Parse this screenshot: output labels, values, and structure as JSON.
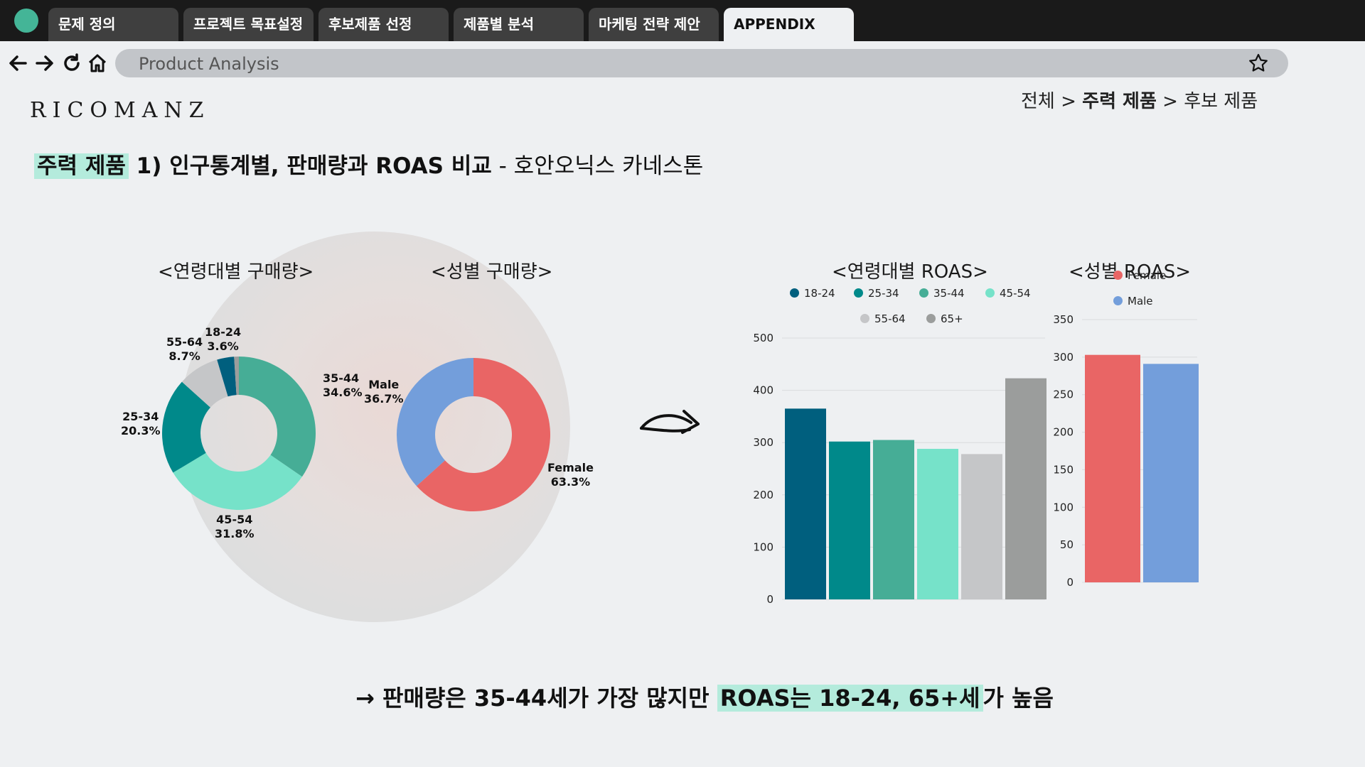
{
  "tabs": [
    {
      "label": "문제 정의"
    },
    {
      "label": "프로젝트 목표설정"
    },
    {
      "label": "후보제품 선정"
    },
    {
      "label": "제품별 분석"
    },
    {
      "label": "마케팅 전략 제안"
    },
    {
      "label": "APPENDIX"
    }
  ],
  "address_bar": {
    "text": "Product Analysis"
  },
  "logo": "RICOMANZ",
  "breadcrumb": {
    "part1": "전체 > ",
    "part2": "주력 제품",
    "part3": " > 후보 제품"
  },
  "title": {
    "highlight": "주력 제품",
    "main": " 1) 인구통계별, 판매량과 ROAS 비교",
    "sub": " - 호안오닉스 카네스톤"
  },
  "chart_titles": {
    "age_purchase": "<연령대별 구매량>",
    "gender_purchase": "<성별 구매량>",
    "age_roas": "<연령대별 ROAS>",
    "gender_roas": "<성별 ROAS>"
  },
  "colors": {
    "18-24": "#005f7e",
    "25-34": "#00898a",
    "35-44": "#46ad96",
    "45-54": "#76e2c9",
    "55-64": "#c5c6c8",
    "65+": "#9b9d9c",
    "Female": "#e96565",
    "Male": "#739edb"
  },
  "chart_data": [
    {
      "type": "pie",
      "title": "<연령대별 구매량>",
      "slices": [
        {
          "label": "35-44",
          "value": 34.6,
          "text": "35-44\n34.6%"
        },
        {
          "label": "45-54",
          "value": 31.8,
          "text": "45-54\n31.8%"
        },
        {
          "label": "25-34",
          "value": 20.3,
          "text": "25-34\n20.3%"
        },
        {
          "label": "55-64",
          "value": 8.7,
          "text": "55-64\n8.7%"
        },
        {
          "label": "18-24",
          "value": 3.6,
          "text": "18-24\n3.6%"
        },
        {
          "label": "65+",
          "value": 1.0,
          "text": ""
        }
      ]
    },
    {
      "type": "pie",
      "title": "<성별 구매량>",
      "slices": [
        {
          "label": "Female",
          "value": 63.3,
          "text": "Female\n63.3%"
        },
        {
          "label": "Male",
          "value": 36.7,
          "text": "Male\n36.7%"
        }
      ]
    },
    {
      "type": "bar",
      "title": "<연령대별 ROAS>",
      "categories": [
        "18-24",
        "25-34",
        "35-44",
        "45-54",
        "55-64",
        "65+"
      ],
      "values": [
        365,
        302,
        305,
        288,
        278,
        423
      ],
      "ylim": [
        0,
        500
      ],
      "yticks": [
        0,
        100,
        200,
        300,
        400,
        500
      ],
      "legend": "top",
      "grid": true
    },
    {
      "type": "bar",
      "title": "<성별 ROAS>",
      "categories": [
        "Female",
        "Male"
      ],
      "values": [
        303,
        291
      ],
      "ylim": [
        0,
        350
      ],
      "yticks": [
        0,
        50,
        100,
        150,
        200,
        250,
        300,
        350
      ],
      "legend": "top",
      "grid": true
    }
  ],
  "conclusion": {
    "arrow": "→",
    "part1": " 판매량은 35-44세가 가장 많지만 ",
    "highlight": "ROAS는 18-24, 65+세",
    "part2": "가 높음"
  }
}
